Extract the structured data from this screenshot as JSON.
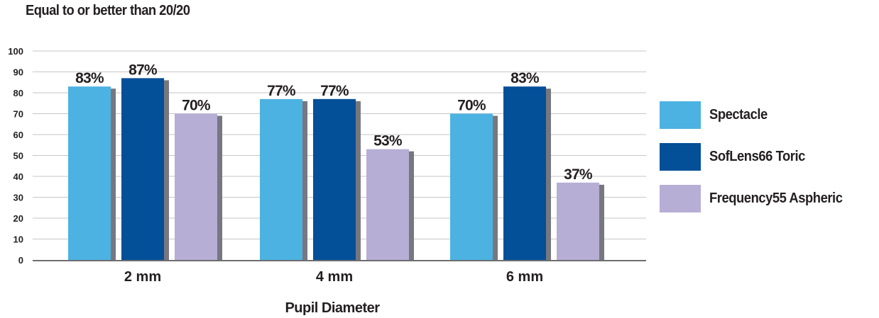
{
  "chart_data": {
    "type": "bar",
    "title": "Equal to or better than 20/20",
    "xlabel": "Pupil Diameter",
    "ylabel": "",
    "categories": [
      "2 mm",
      "4 mm",
      "6 mm"
    ],
    "ylim": [
      0,
      100
    ],
    "yticks": [
      0,
      10,
      20,
      30,
      40,
      50,
      60,
      70,
      80,
      90,
      100
    ],
    "grid": true,
    "legend_position": "right",
    "series": [
      {
        "name": "Spectacle",
        "values": [
          83,
          77,
          70
        ],
        "labels": [
          "83%",
          "77%",
          "70%"
        ],
        "color": "#4cb2e1"
      },
      {
        "name": "SofLens66 Toric",
        "values": [
          87,
          77,
          83
        ],
        "labels": [
          "87%",
          "77%",
          "83%"
        ],
        "color": "#034f98"
      },
      {
        "name": "Frequency55 Aspheric",
        "values": [
          70,
          53,
          37
        ],
        "labels": [
          "70%",
          "53%",
          "37%"
        ],
        "color": "#b6aed5"
      }
    ],
    "shadow_color": "#77777f"
  }
}
